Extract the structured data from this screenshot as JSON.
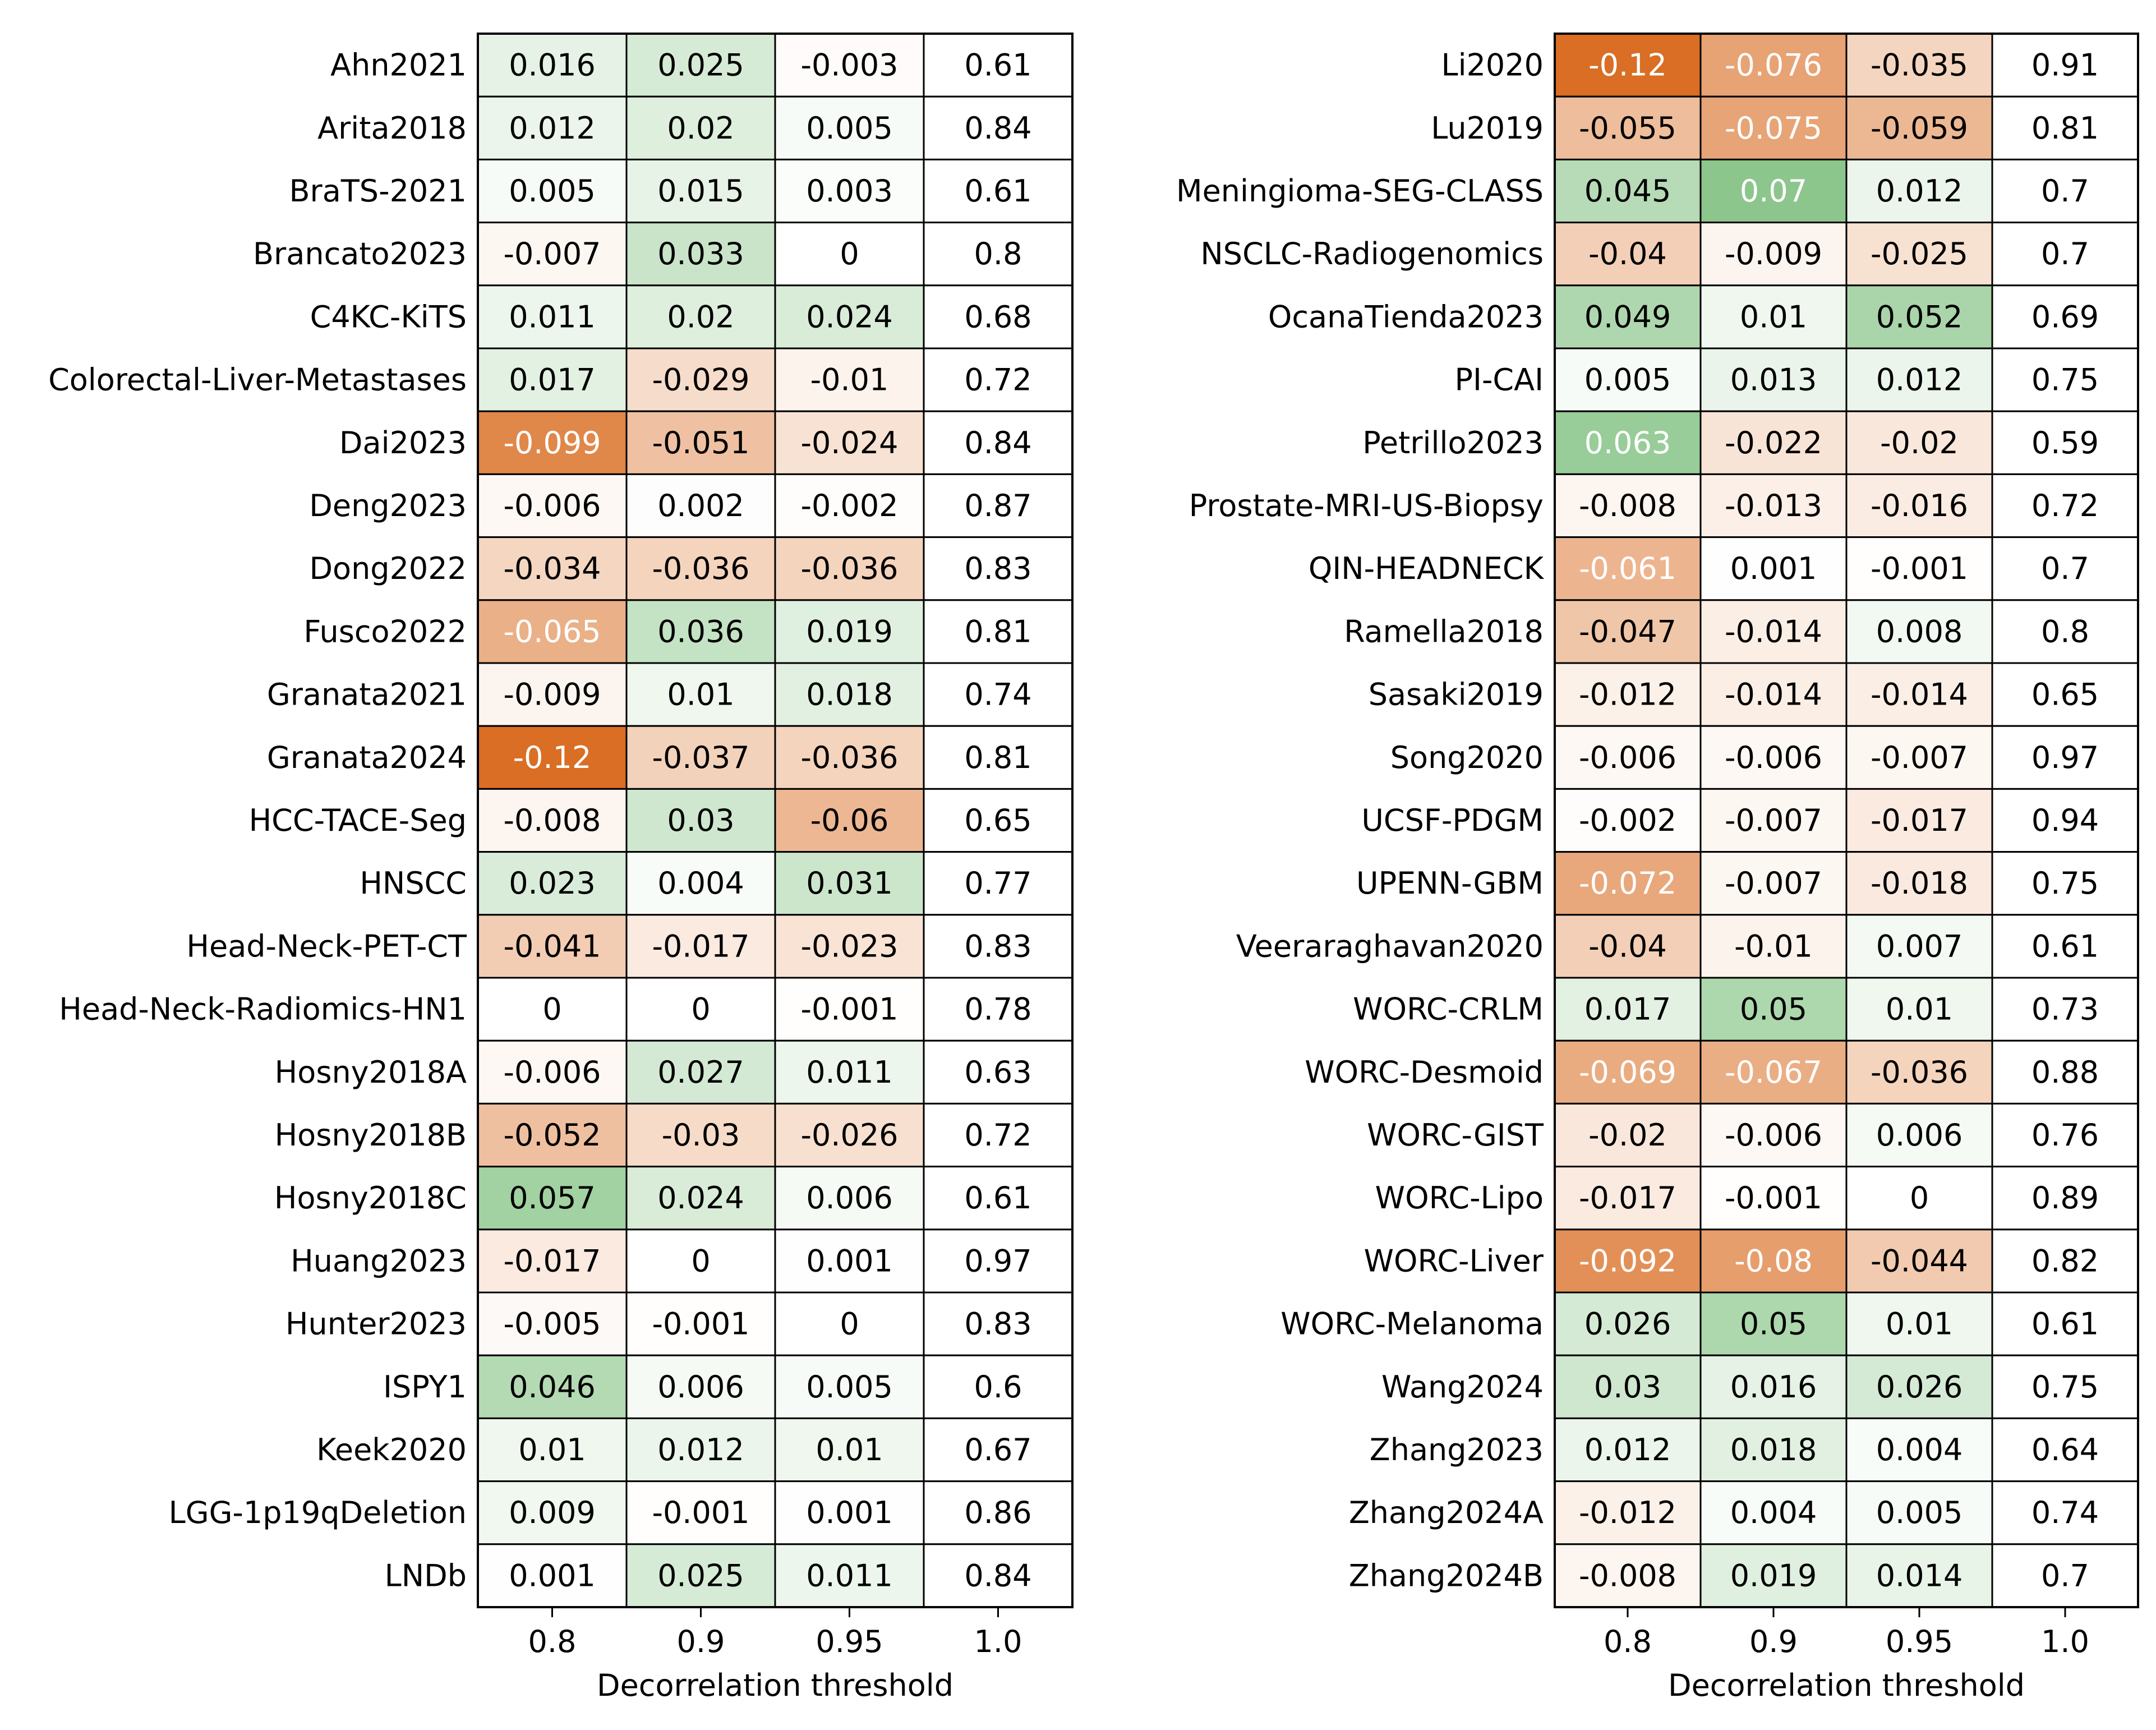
{
  "chart_data": [
    {
      "type": "heatmap",
      "xlabel": "Decorrelation threshold",
      "ylabel": "",
      "columns": [
        "0.8",
        "0.9",
        "0.95",
        "1.0"
      ],
      "color_scale": {
        "negative": "#d96e24",
        "zero": "#ffffff",
        "positive": "#3b9e3b",
        "note_columns": "first three columns colored by value; last column uncolored"
      },
      "rows": [
        {
          "label": "Ahn2021",
          "values": [
            0.016,
            0.025,
            -0.003
          ],
          "ref": 0.61
        },
        {
          "label": "Arita2018",
          "values": [
            0.012,
            0.02,
            0.005
          ],
          "ref": 0.84
        },
        {
          "label": "BraTS-2021",
          "values": [
            0.005,
            0.015,
            0.003
          ],
          "ref": 0.61
        },
        {
          "label": "Brancato2023",
          "values": [
            -0.007,
            0.033,
            0
          ],
          "ref": 0.8
        },
        {
          "label": "C4KC-KiTS",
          "values": [
            0.011,
            0.02,
            0.024
          ],
          "ref": 0.68
        },
        {
          "label": "Colorectal-Liver-Metastases",
          "values": [
            0.017,
            -0.029,
            -0.01
          ],
          "ref": 0.72
        },
        {
          "label": "Dai2023",
          "values": [
            -0.099,
            -0.051,
            -0.024
          ],
          "ref": 0.84
        },
        {
          "label": "Deng2023",
          "values": [
            -0.006,
            0.002,
            -0.002
          ],
          "ref": 0.87
        },
        {
          "label": "Dong2022",
          "values": [
            -0.034,
            -0.036,
            -0.036
          ],
          "ref": 0.83
        },
        {
          "label": "Fusco2022",
          "values": [
            -0.065,
            0.036,
            0.019
          ],
          "ref": 0.81
        },
        {
          "label": "Granata2021",
          "values": [
            -0.009,
            0.01,
            0.018
          ],
          "ref": 0.74
        },
        {
          "label": "Granata2024",
          "values": [
            -0.12,
            -0.037,
            -0.036
          ],
          "ref": 0.81
        },
        {
          "label": "HCC-TACE-Seg",
          "values": [
            -0.008,
            0.03,
            -0.06
          ],
          "ref": 0.65
        },
        {
          "label": "HNSCC",
          "values": [
            0.023,
            0.004,
            0.031
          ],
          "ref": 0.77
        },
        {
          "label": "Head-Neck-PET-CT",
          "values": [
            -0.041,
            -0.017,
            -0.023
          ],
          "ref": 0.83
        },
        {
          "label": "Head-Neck-Radiomics-HN1",
          "values": [
            0,
            0,
            -0.001
          ],
          "ref": 0.78
        },
        {
          "label": "Hosny2018A",
          "values": [
            -0.006,
            0.027,
            0.011
          ],
          "ref": 0.63
        },
        {
          "label": "Hosny2018B",
          "values": [
            -0.052,
            -0.03,
            -0.026
          ],
          "ref": 0.72
        },
        {
          "label": "Hosny2018C",
          "values": [
            0.057,
            0.024,
            0.006
          ],
          "ref": 0.61
        },
        {
          "label": "Huang2023",
          "values": [
            -0.017,
            0,
            0.001
          ],
          "ref": 0.97
        },
        {
          "label": "Hunter2023",
          "values": [
            -0.005,
            -0.001,
            0
          ],
          "ref": 0.83
        },
        {
          "label": "ISPY1",
          "values": [
            0.046,
            0.006,
            0.005
          ],
          "ref": 0.6
        },
        {
          "label": "Keek2020",
          "values": [
            0.01,
            0.012,
            0.01
          ],
          "ref": 0.67
        },
        {
          "label": "LGG-1p19qDeletion",
          "values": [
            0.009,
            -0.001,
            0.001
          ],
          "ref": 0.86
        },
        {
          "label": "LNDb",
          "values": [
            0.001,
            0.025,
            0.011
          ],
          "ref": 0.84
        }
      ]
    },
    {
      "type": "heatmap",
      "xlabel": "Decorrelation threshold",
      "ylabel": "",
      "columns": [
        "0.8",
        "0.9",
        "0.95",
        "1.0"
      ],
      "color_scale": {
        "negative": "#d96e24",
        "zero": "#ffffff",
        "positive": "#3b9e3b",
        "note_columns": "first three columns colored by value; last column uncolored"
      },
      "rows": [
        {
          "label": "Li2020",
          "values": [
            -0.12,
            -0.076,
            -0.035
          ],
          "ref": 0.91
        },
        {
          "label": "Lu2019",
          "values": [
            -0.055,
            -0.075,
            -0.059
          ],
          "ref": 0.81
        },
        {
          "label": "Meningioma-SEG-CLASS",
          "values": [
            0.045,
            0.07,
            0.012
          ],
          "ref": 0.7
        },
        {
          "label": "NSCLC-Radiogenomics",
          "values": [
            -0.04,
            -0.009,
            -0.025
          ],
          "ref": 0.7
        },
        {
          "label": "OcanaTienda2023",
          "values": [
            0.049,
            0.01,
            0.052
          ],
          "ref": 0.69
        },
        {
          "label": "PI-CAI",
          "values": [
            0.005,
            0.013,
            0.012
          ],
          "ref": 0.75
        },
        {
          "label": "Petrillo2023",
          "values": [
            0.063,
            -0.022,
            -0.02
          ],
          "ref": 0.59
        },
        {
          "label": "Prostate-MRI-US-Biopsy",
          "values": [
            -0.008,
            -0.013,
            -0.016
          ],
          "ref": 0.72
        },
        {
          "label": "QIN-HEADNECK",
          "values": [
            -0.061,
            0.001,
            -0.001
          ],
          "ref": 0.7
        },
        {
          "label": "Ramella2018",
          "values": [
            -0.047,
            -0.014,
            0.008
          ],
          "ref": 0.8
        },
        {
          "label": "Sasaki2019",
          "values": [
            -0.012,
            -0.014,
            -0.014
          ],
          "ref": 0.65
        },
        {
          "label": "Song2020",
          "values": [
            -0.006,
            -0.006,
            -0.007
          ],
          "ref": 0.97
        },
        {
          "label": "UCSF-PDGM",
          "values": [
            -0.002,
            -0.007,
            -0.017
          ],
          "ref": 0.94
        },
        {
          "label": "UPENN-GBM",
          "values": [
            -0.072,
            -0.007,
            -0.018
          ],
          "ref": 0.75
        },
        {
          "label": "Veeraraghavan2020",
          "values": [
            -0.04,
            -0.01,
            0.007
          ],
          "ref": 0.61
        },
        {
          "label": "WORC-CRLM",
          "values": [
            0.017,
            0.05,
            0.01
          ],
          "ref": 0.73
        },
        {
          "label": "WORC-Desmoid",
          "values": [
            -0.069,
            -0.067,
            -0.036
          ],
          "ref": 0.88
        },
        {
          "label": "WORC-GIST",
          "values": [
            -0.02,
            -0.006,
            0.006
          ],
          "ref": 0.76
        },
        {
          "label": "WORC-Lipo",
          "values": [
            -0.017,
            -0.001,
            0
          ],
          "ref": 0.89
        },
        {
          "label": "WORC-Liver",
          "values": [
            -0.092,
            -0.08,
            -0.044
          ],
          "ref": 0.82
        },
        {
          "label": "WORC-Melanoma",
          "values": [
            0.026,
            0.05,
            0.01
          ],
          "ref": 0.61
        },
        {
          "label": "Wang2024",
          "values": [
            0.03,
            0.016,
            0.026
          ],
          "ref": 0.75
        },
        {
          "label": "Zhang2023",
          "values": [
            0.012,
            0.018,
            0.004
          ],
          "ref": 0.64
        },
        {
          "label": "Zhang2024A",
          "values": [
            -0.012,
            0.004,
            0.005
          ],
          "ref": 0.74
        },
        {
          "label": "Zhang2024B",
          "values": [
            -0.008,
            0.019,
            0.014
          ],
          "ref": 0.7
        }
      ]
    }
  ]
}
